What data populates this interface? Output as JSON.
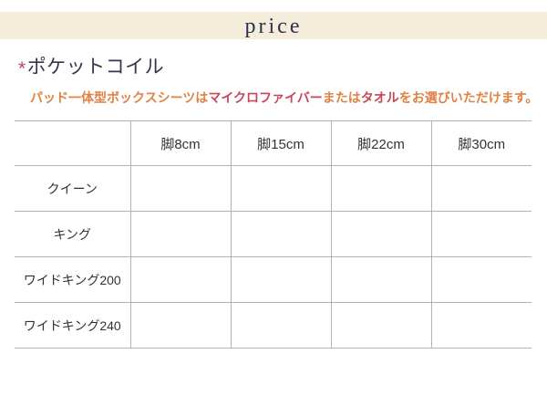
{
  "header": {
    "title": "price"
  },
  "section": {
    "mark": "*",
    "heading": "ポケットコイル",
    "note_segments": [
      {
        "text": "パッド一体型ボックスシーツは",
        "color": "orange"
      },
      {
        "text": "マイクロファイバー",
        "color": "red"
      },
      {
        "text": "または",
        "color": "orange"
      },
      {
        "text": "タオル",
        "color": "red"
      },
      {
        "text": "をお選びいただけます。",
        "color": "orange"
      }
    ]
  },
  "table": {
    "corner_label": "",
    "columns": [
      "脚8cm",
      "脚15cm",
      "脚22cm",
      "脚30cm"
    ],
    "rows": [
      {
        "label": "クイーン",
        "values": [
          "",
          "",
          "",
          ""
        ]
      },
      {
        "label": "キング",
        "values": [
          "",
          "",
          "",
          ""
        ]
      },
      {
        "label": "ワイドキング200",
        "values": [
          "",
          "",
          "",
          ""
        ]
      },
      {
        "label": "ワイドキング240",
        "values": [
          "",
          "",
          "",
          ""
        ]
      }
    ]
  },
  "colors": {
    "title_bar_bg": "#f4edd9",
    "title_text": "#2e3050",
    "heading_text": "#33344e",
    "heading_mark": "#b34b5e",
    "note_orange": "#e08244",
    "note_red": "#c7475a",
    "table_border": "#b3b3b3",
    "table_text": "#333333"
  }
}
